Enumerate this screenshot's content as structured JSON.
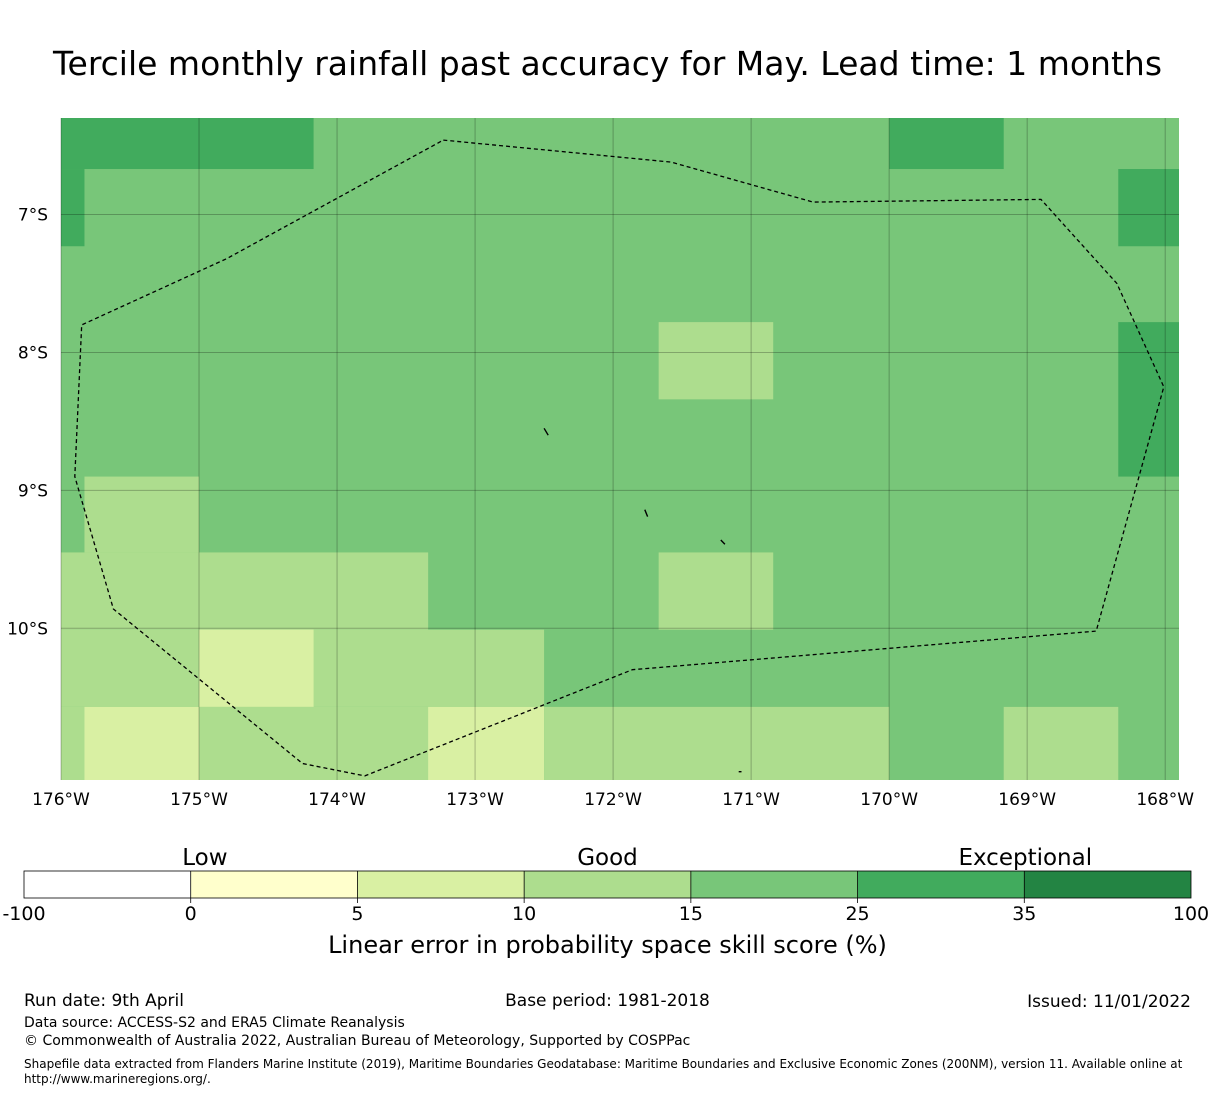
{
  "title": "Tercile monthly rainfall past accuracy for May. Lead time: 1 months",
  "map": {
    "lat_range": [
      -11.1,
      -6.3
    ],
    "lon_range": [
      -176,
      -167.9
    ],
    "lat_labels": [
      {
        "value": -7,
        "text": "7°S"
      },
      {
        "value": -8,
        "text": "8°S"
      },
      {
        "value": -9,
        "text": "9°S"
      },
      {
        "value": -10,
        "text": "10°S"
      }
    ],
    "lon_labels": [
      {
        "value": -176,
        "text": "176°W"
      },
      {
        "value": -175,
        "text": "175°W"
      },
      {
        "value": -174,
        "text": "174°W"
      },
      {
        "value": -173,
        "text": "173°W"
      },
      {
        "value": -172,
        "text": "172°W"
      },
      {
        "value": -171,
        "text": "171°W"
      },
      {
        "value": -170,
        "text": "170°W"
      },
      {
        "value": -169,
        "text": "169°W"
      },
      {
        "value": -168,
        "text": "168°W"
      }
    ],
    "background_color": "#78c679",
    "cells": [
      {
        "lon": [
          -176,
          -174.17
        ],
        "lat": [
          -6.3,
          -6.67
        ],
        "color": "#41ab5d"
      },
      {
        "lon": [
          -176,
          -175.83
        ],
        "lat": [
          -6.67,
          -7.23
        ],
        "color": "#41ab5d"
      },
      {
        "lon": [
          -170,
          -169.17
        ],
        "lat": [
          -6.3,
          -6.67
        ],
        "color": "#41ab5d"
      },
      {
        "lon": [
          -168.34,
          -167.9
        ],
        "lat": [
          -6.67,
          -7.23
        ],
        "color": "#41ab5d"
      },
      {
        "lon": [
          -168.34,
          -167.9
        ],
        "lat": [
          -7.78,
          -8.9
        ],
        "color": "#41ab5d"
      },
      {
        "lon": [
          -171.67,
          -170.84
        ],
        "lat": [
          -7.78,
          -8.34
        ],
        "color": "#addd8e"
      },
      {
        "lon": [
          -175.83,
          -175
        ],
        "lat": [
          -8.9,
          -9.45
        ],
        "color": "#addd8e"
      },
      {
        "lon": [
          -176,
          -173.34
        ],
        "lat": [
          -9.45,
          -10.01
        ],
        "color": "#addd8e"
      },
      {
        "lon": [
          -171.67,
          -170.84
        ],
        "lat": [
          -9.45,
          -10.01
        ],
        "color": "#addd8e"
      },
      {
        "lon": [
          -176,
          -172.5
        ],
        "lat": [
          -10.01,
          -10.57
        ],
        "color": "#addd8e"
      },
      {
        "lon": [
          -175,
          -174.17
        ],
        "lat": [
          -10.01,
          -10.57
        ],
        "color": "#d9f0a3"
      },
      {
        "lon": [
          -176,
          -172.5
        ],
        "lat": [
          -10.57,
          -11.1
        ],
        "color": "#addd8e"
      },
      {
        "lon": [
          -175.83,
          -175
        ],
        "lat": [
          -10.57,
          -11.1
        ],
        "color": "#d9f0a3"
      },
      {
        "lon": [
          -173.34,
          -172.5
        ],
        "lat": [
          -10.57,
          -11.1
        ],
        "color": "#d9f0a3"
      },
      {
        "lon": [
          -172.5,
          -170
        ],
        "lat": [
          -10.57,
          -11.1
        ],
        "color": "#addd8e"
      },
      {
        "lon": [
          -169.17,
          -168.34
        ],
        "lat": [
          -10.57,
          -11.1
        ],
        "color": "#addd8e"
      }
    ],
    "eez_boundary": [
      [
        -173.23,
        -6.46
      ],
      [
        -171.58,
        -6.62
      ],
      [
        -170.55,
        -6.91
      ],
      [
        -168.9,
        -6.89
      ],
      [
        -168.35,
        -7.5
      ],
      [
        -168.01,
        -8.25
      ],
      [
        -168.5,
        -10.02
      ],
      [
        -171.86,
        -10.3
      ],
      [
        -173.8,
        -11.07
      ],
      [
        -174.25,
        -10.98
      ],
      [
        -175.62,
        -9.86
      ],
      [
        -175.9,
        -8.9
      ],
      [
        -175.85,
        -7.8
      ],
      [
        -174.8,
        -7.32
      ],
      [
        -173.23,
        -6.46
      ]
    ],
    "islands": [
      [
        [
          -172.5,
          -8.55
        ],
        [
          -172.47,
          -8.6
        ]
      ],
      [
        [
          -171.77,
          -9.14
        ],
        [
          -171.75,
          -9.19
        ]
      ],
      [
        [
          -171.22,
          -9.36
        ],
        [
          -171.19,
          -9.39
        ]
      ],
      [
        [
          -171.09,
          -11.04
        ],
        [
          -171.07,
          -11.04
        ]
      ]
    ]
  },
  "colorbar": {
    "categories": [
      {
        "text": "Low",
        "position": 0.155
      },
      {
        "text": "Good",
        "position": 0.5
      },
      {
        "text": "Exceptional",
        "position": 0.858
      }
    ],
    "colors": [
      "#ffffff",
      "#ffffcc",
      "#d9f0a3",
      "#addd8e",
      "#78c679",
      "#41ab5d",
      "#238443"
    ],
    "ticks": [
      "-100",
      "0",
      "5",
      "10",
      "15",
      "25",
      "35",
      "100"
    ],
    "label": "Linear error in probability space skill score (%)"
  },
  "footer": {
    "run_date": "Run date: 9th April",
    "base_period": "Base period: 1981-2018",
    "issued": "Issued: 11/01/2022",
    "data_source": "Data source: ACCESS-S2 and ERA5 Climate Reanalysis",
    "copyright": "© Commonwealth of Australia 2022, Australian Bureau of Meteorology, Supported by COSPPac",
    "shapefile_line1": "Shapefile data extracted from Flanders Marine Institute (2019), Maritime Boundaries Geodatabase: Maritime Boundaries and Exclusive Economic Zones (200NM), version 11. Available online at",
    "shapefile_line2": "http://www.marineregions.org/."
  }
}
